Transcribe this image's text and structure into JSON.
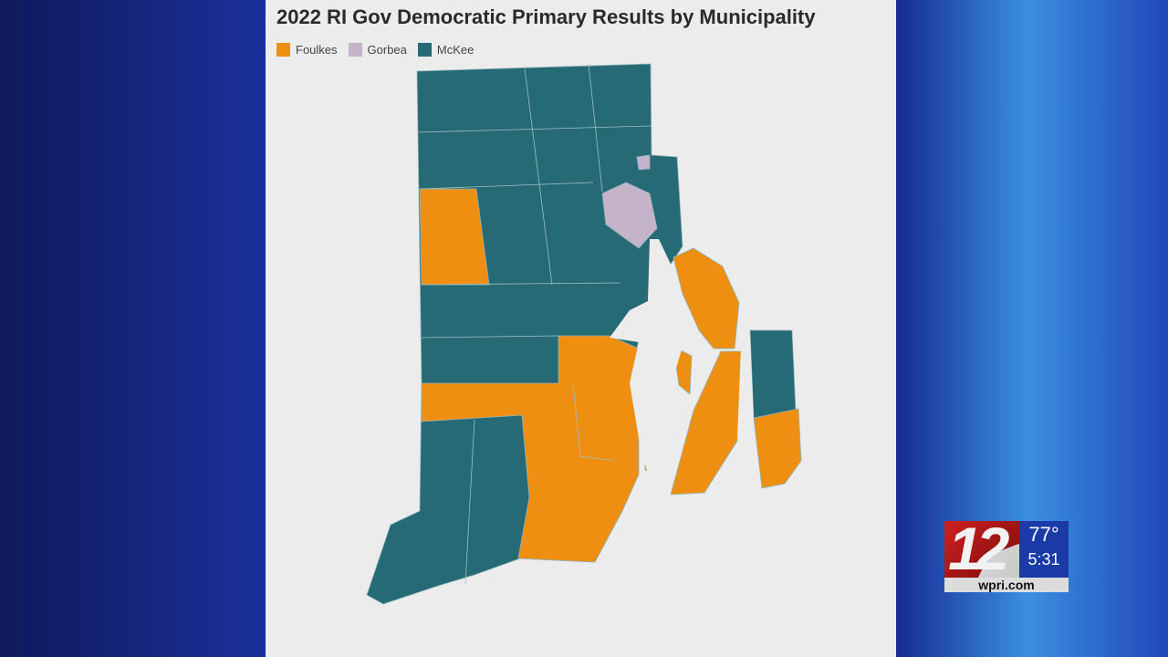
{
  "map": {
    "title": "2022 RI Gov Democratic Primary Results by Municipality",
    "legend": [
      {
        "label": "Foulkes",
        "color": "#ee8f12"
      },
      {
        "label": "Gorbea",
        "color": "#c4b3c9"
      },
      {
        "label": "McKee",
        "color": "#266a75"
      }
    ],
    "winner_colors": {
      "Foulkes": "#ee8f12",
      "Gorbea": "#c4b3c9",
      "McKee": "#266a75"
    }
  },
  "station_bug": {
    "logo_number": "12",
    "temperature": "77°",
    "time": "5:31",
    "website": "wpri.com"
  }
}
